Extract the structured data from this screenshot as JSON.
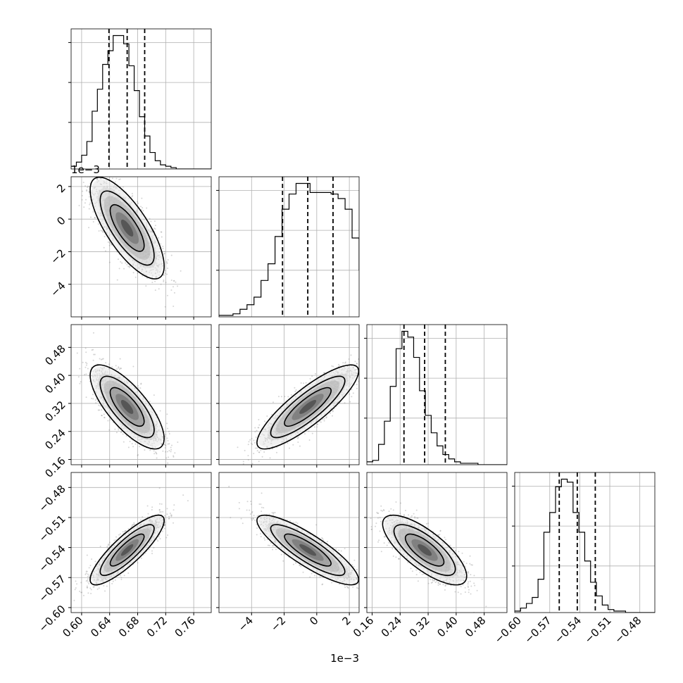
{
  "chart_data": {
    "type": "corner",
    "grid": true,
    "parameters": [
      {
        "range": [
          0.585,
          0.785
        ],
        "ticks": [
          0.6,
          0.64,
          0.68,
          0.72,
          0.76
        ],
        "tick_labels": [
          "0.60",
          "0.64",
          "0.68",
          "0.72",
          "0.76"
        ],
        "offset_text": "",
        "quantiles": [
          0.639,
          0.665,
          0.69
        ]
      },
      {
        "range": [
          -6.0,
          2.6
        ],
        "ticks": [
          -4,
          -2,
          0,
          2
        ],
        "tick_labels": [
          "−4",
          "−2",
          "0",
          "2"
        ],
        "offset_text": "1e−3",
        "quantiles": [
          -2.1,
          -0.55,
          1.0
        ]
      },
      {
        "range": [
          0.145,
          0.545
        ],
        "ticks": [
          0.16,
          0.24,
          0.32,
          0.4,
          0.48
        ],
        "tick_labels": [
          "0.16",
          "0.24",
          "0.32",
          "0.40",
          "0.48"
        ],
        "offset_text": "",
        "quantiles": [
          0.251,
          0.31,
          0.369
        ]
      },
      {
        "range": [
          -0.605,
          -0.465
        ],
        "ticks": [
          -0.6,
          -0.57,
          -0.54,
          -0.51,
          -0.48
        ],
        "tick_labels": [
          "−0.60",
          "−0.57",
          "−0.54",
          "−0.51",
          "−0.48"
        ],
        "offset_text": "",
        "quantiles": [
          -0.5605,
          -0.5425,
          -0.5245
        ]
      }
    ],
    "histograms": [
      {
        "edges_start": 0.585,
        "bin_width": 0.0075,
        "counts": [
          2,
          5,
          10,
          20,
          42,
          58,
          76,
          86,
          97,
          97,
          91,
          75,
          57,
          38,
          24,
          12,
          6,
          3,
          2,
          1,
          0,
          0,
          0,
          0,
          0,
          0,
          0
        ]
      },
      {
        "edges_start": -6.0,
        "bin_width": 0.43,
        "counts": [
          1,
          1,
          2,
          5,
          8,
          13,
          24,
          35,
          53,
          71,
          81,
          88,
          88,
          82,
          82,
          82,
          81,
          78,
          71,
          52,
          31
        ]
      },
      {
        "edges_start": 0.145,
        "bin_width": 0.0167,
        "counts": [
          2,
          3,
          14,
          30,
          54,
          80,
          92,
          88,
          74,
          51,
          34,
          22,
          13,
          7,
          4,
          2,
          1,
          1,
          1,
          0,
          0,
          0,
          0,
          0
        ]
      },
      {
        "edges_start": -0.605,
        "bin_width": 0.00583,
        "counts": [
          1,
          3,
          6,
          10,
          22,
          53,
          66,
          83,
          88,
          86,
          66,
          53,
          34,
          20,
          11,
          5,
          2,
          1,
          1,
          0,
          0,
          0,
          0,
          0
        ]
      }
    ],
    "pairs": [
      {
        "x": 0,
        "y": 1,
        "mean": [
          0.665,
          -0.55
        ],
        "sd": [
          0.022,
          1.3
        ],
        "corr": -0.75
      },
      {
        "x": 0,
        "y": 2,
        "mean": [
          0.665,
          0.31
        ],
        "sd": [
          0.022,
          0.05
        ],
        "corr": -0.75
      },
      {
        "x": 1,
        "y": 2,
        "mean": [
          -0.55,
          0.31
        ],
        "sd": [
          1.3,
          0.05
        ],
        "corr": 0.85
      },
      {
        "x": 0,
        "y": 3,
        "mean": [
          0.665,
          -0.5425
        ],
        "sd": [
          0.022,
          0.0145
        ],
        "corr": 0.85
      },
      {
        "x": 1,
        "y": 3,
        "mean": [
          -0.55,
          -0.5425
        ],
        "sd": [
          1.3,
          0.0145
        ],
        "corr": -0.85
      },
      {
        "x": 2,
        "y": 3,
        "mean": [
          0.31,
          -0.5425
        ],
        "sd": [
          0.05,
          0.0145
        ],
        "corr": -0.75
      }
    ]
  }
}
